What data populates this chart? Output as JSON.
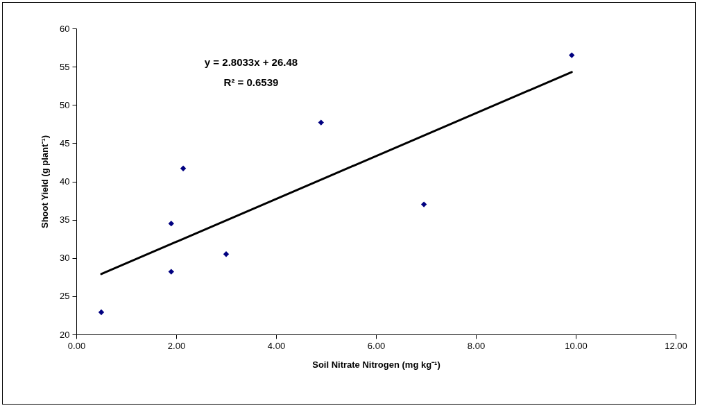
{
  "chart_data": {
    "type": "scatter",
    "xlabel": "Soil Nitrate Nitrogen (mg kg⁻¹)",
    "ylabel": "Shoot Yield (g plant⁻¹)",
    "xlim": [
      0,
      12
    ],
    "xticks": [
      {
        "value": 0,
        "label": "0.00"
      },
      {
        "value": 2,
        "label": "2.00"
      },
      {
        "value": 4,
        "label": "4.00"
      },
      {
        "value": 6,
        "label": "6.00"
      },
      {
        "value": 8,
        "label": "8.00"
      },
      {
        "value": 10,
        "label": "10.00"
      },
      {
        "value": 12,
        "label": "12.00"
      }
    ],
    "ylim": [
      20,
      60
    ],
    "yticks": [
      20,
      25,
      30,
      35,
      40,
      45,
      50,
      55,
      60
    ],
    "grid": false,
    "series": [
      {
        "color": "#000080",
        "marker": "diamond",
        "x": [
          0.5,
          1.9,
          1.9,
          2.14,
          3.0,
          4.9,
          6.96,
          9.92
        ],
        "values": [
          22.9,
          28.2,
          34.5,
          41.7,
          30.5,
          47.7,
          37.0,
          56.5
        ]
      },
      {
        "type": "line",
        "color": "#000000",
        "line_style": "solid",
        "marker": "none",
        "x": [
          0.5,
          9.92
        ],
        "values": [
          27.9,
          54.3
        ]
      }
    ],
    "annotations": [
      "y = 2.8033x + 26.48",
      "R² = 0.6539"
    ]
  }
}
